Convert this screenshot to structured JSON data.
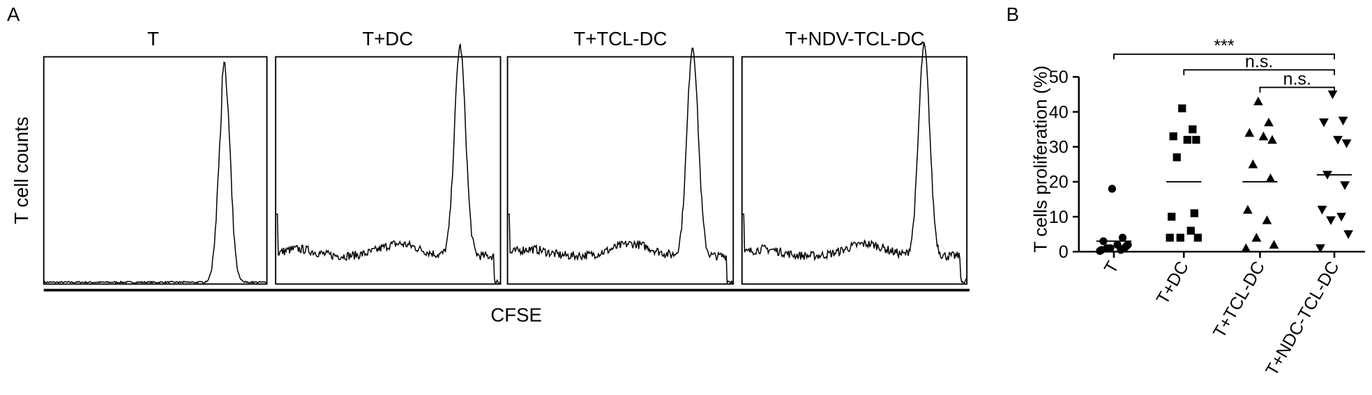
{
  "panel_labels": [
    "A",
    "B"
  ],
  "panel_a": {
    "titles": [
      "T",
      "T+DC",
      "T+TCL-DC",
      "T+NDV-TCL-DC"
    ],
    "y_label": "T cell counts",
    "x_label": "CFSE"
  },
  "chart_data": {
    "type": "scatter",
    "y_label": "T cells proliferation (%)",
    "categories": [
      "T",
      "T+DC",
      "T+TCL-DC",
      "T+NDC-TCL-DC"
    ],
    "series": [
      {
        "marker": "circle",
        "color": "#000000",
        "values": [
          18,
          4,
          3,
          2,
          1.5,
          1,
          1,
          0.5,
          0.5,
          1,
          2,
          0.2
        ]
      },
      {
        "marker": "square",
        "color": "#000000",
        "values": [
          41,
          35,
          33,
          32,
          32,
          27,
          11,
          10,
          6,
          4,
          4,
          4
        ]
      },
      {
        "marker": "triangle-up",
        "color": "#000000",
        "values": [
          43,
          37,
          34,
          33,
          32,
          25,
          21,
          12,
          9,
          4,
          2,
          1
        ]
      },
      {
        "marker": "triangle-down",
        "color": "#000000",
        "values": [
          45,
          37.5,
          37,
          32,
          31,
          22,
          19,
          12,
          10,
          9,
          5,
          1
        ]
      }
    ],
    "means": [
      3,
      20,
      20,
      22
    ],
    "ylim": [
      0,
      50
    ],
    "yticks": [
      0,
      10,
      20,
      30,
      40,
      50
    ],
    "annotations": [
      {
        "text": "***",
        "from": 0,
        "to": 3
      },
      {
        "text": "n.s.",
        "from": 1,
        "to": 3
      },
      {
        "text": "n.s.",
        "from": 2,
        "to": 3
      }
    ]
  }
}
